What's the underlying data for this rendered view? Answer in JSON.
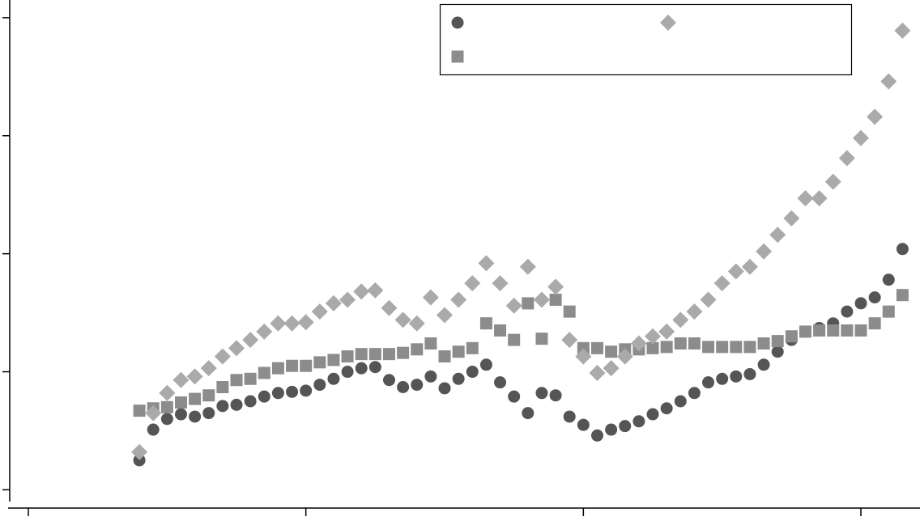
{
  "chart_data": {
    "type": "scatter",
    "legend": "upper right",
    "xlim": [
      -0.073,
      3.213
    ],
    "xticks": [
      0,
      1,
      2,
      3
    ],
    "ylim": [
      -0.1,
      4.15
    ],
    "yticks": [
      0,
      1,
      2,
      3,
      4
    ],
    "x": [
      0.4,
      0.45,
      0.5,
      0.55,
      0.6,
      0.65,
      0.7,
      0.75,
      0.8,
      0.85,
      0.9,
      0.95,
      1.0,
      1.05,
      1.1,
      1.15,
      1.2,
      1.25,
      1.3,
      1.35,
      1.4,
      1.45,
      1.5,
      1.55,
      1.6,
      1.65,
      1.7,
      1.75,
      1.8,
      1.85,
      1.9,
      1.95,
      2.0,
      2.05,
      2.1,
      2.15,
      2.2,
      2.25,
      2.3,
      2.35,
      2.4,
      2.45,
      2.5,
      2.55,
      2.6,
      2.65,
      2.7,
      2.75,
      2.8,
      2.85,
      2.9,
      2.95,
      3.0,
      3.05,
      3.1,
      3.15
    ],
    "series": [
      {
        "marker": "circle",
        "color": "#555555",
        "values": [
          0.25,
          0.51,
          0.6,
          0.64,
          0.62,
          0.65,
          0.71,
          0.72,
          0.75,
          0.79,
          0.82,
          0.83,
          0.84,
          0.89,
          0.94,
          1.0,
          1.03,
          1.04,
          0.93,
          0.87,
          0.89,
          0.96,
          0.86,
          0.94,
          1.0,
          1.06,
          0.91,
          0.79,
          0.65,
          0.82,
          0.8,
          0.62,
          0.55,
          0.46,
          0.51,
          0.54,
          0.58,
          0.64,
          0.69,
          0.75,
          0.82,
          0.91,
          0.94,
          0.96,
          0.98,
          1.06,
          1.17,
          1.27,
          1.34,
          1.37,
          1.41,
          1.51,
          1.58,
          1.63,
          1.78,
          2.04
        ]
      },
      {
        "marker": "square",
        "color": "#8c8c8c",
        "values": [
          0.67,
          0.69,
          0.7,
          0.74,
          0.77,
          0.8,
          0.87,
          0.93,
          0.94,
          0.99,
          1.03,
          1.05,
          1.05,
          1.08,
          1.1,
          1.13,
          1.15,
          1.15,
          1.15,
          1.16,
          1.19,
          1.24,
          1.13,
          1.17,
          1.2,
          1.41,
          1.35,
          1.27,
          1.58,
          1.28,
          1.61,
          1.51,
          1.2,
          1.2,
          1.17,
          1.19,
          1.19,
          1.2,
          1.21,
          1.24,
          1.24,
          1.21,
          1.21,
          1.21,
          1.21,
          1.24,
          1.26,
          1.3,
          1.34,
          1.35,
          1.35,
          1.35,
          1.35,
          1.41,
          1.51,
          1.65
        ]
      },
      {
        "marker": "diamond",
        "color": "#aaaaaa",
        "values": [
          0.32,
          0.65,
          0.82,
          0.93,
          0.96,
          1.03,
          1.13,
          1.2,
          1.27,
          1.34,
          1.41,
          1.41,
          1.42,
          1.51,
          1.58,
          1.61,
          1.68,
          1.69,
          1.54,
          1.44,
          1.41,
          1.63,
          1.48,
          1.61,
          1.75,
          1.92,
          1.75,
          1.56,
          1.89,
          1.61,
          1.72,
          1.27,
          1.13,
          0.99,
          1.03,
          1.13,
          1.24,
          1.3,
          1.34,
          1.44,
          1.51,
          1.61,
          1.75,
          1.85,
          1.89,
          2.02,
          2.16,
          2.3,
          2.47,
          2.47,
          2.61,
          2.81,
          2.98,
          3.16,
          3.46,
          3.89
        ]
      }
    ]
  }
}
